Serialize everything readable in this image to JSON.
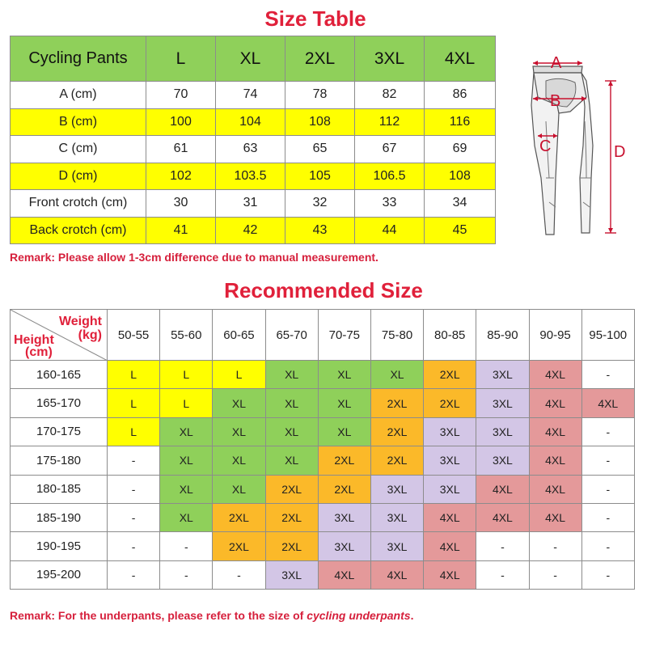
{
  "size_table": {
    "title": "Size Table",
    "header": [
      "Cycling Pants",
      "L",
      "XL",
      "2XL",
      "3XL",
      "4XL"
    ],
    "rows": [
      {
        "label": "A (cm)",
        "values": [
          "70",
          "74",
          "78",
          "82",
          "86"
        ],
        "color": "#ffffff"
      },
      {
        "label": "B (cm)",
        "values": [
          "100",
          "104",
          "108",
          "112",
          "116"
        ],
        "color": "#ffff00"
      },
      {
        "label": "C (cm)",
        "values": [
          "61",
          "63",
          "65",
          "67",
          "69"
        ],
        "color": "#ffffff"
      },
      {
        "label": "D (cm)",
        "values": [
          "102",
          "103.5",
          "105",
          "106.5",
          "108"
        ],
        "color": "#ffff00"
      },
      {
        "label": "Front crotch (cm)",
        "values": [
          "30",
          "31",
          "32",
          "33",
          "34"
        ],
        "color": "#ffffff"
      },
      {
        "label": "Back crotch (cm)",
        "values": [
          "41",
          "42",
          "43",
          "44",
          "45"
        ],
        "color": "#ffff00"
      }
    ],
    "remark": "Remark: Please allow 1-3cm difference due to manual measurement."
  },
  "diagram": {
    "labels": {
      "a": "A",
      "b": "B",
      "c": "C",
      "d": "D"
    }
  },
  "recommended": {
    "title": "Recommended Size",
    "corner": {
      "weight": "Weight",
      "weight_unit": "(kg)",
      "height": "Height",
      "height_unit": "(cm)"
    },
    "weights": [
      "50-55",
      "55-60",
      "60-65",
      "65-70",
      "70-75",
      "75-80",
      "80-85",
      "85-90",
      "90-95",
      "95-100"
    ],
    "rows": [
      {
        "height": "160-165",
        "sizes": [
          "L",
          "L",
          "L",
          "XL",
          "XL",
          "XL",
          "2XL",
          "3XL",
          "4XL",
          "-"
        ]
      },
      {
        "height": "165-170",
        "sizes": [
          "L",
          "L",
          "XL",
          "XL",
          "XL",
          "2XL",
          "2XL",
          "3XL",
          "4XL",
          "4XL"
        ]
      },
      {
        "height": "170-175",
        "sizes": [
          "L",
          "XL",
          "XL",
          "XL",
          "XL",
          "2XL",
          "3XL",
          "3XL",
          "4XL",
          "-"
        ]
      },
      {
        "height": "175-180",
        "sizes": [
          "-",
          "XL",
          "XL",
          "XL",
          "2XL",
          "2XL",
          "3XL",
          "3XL",
          "4XL",
          "-"
        ]
      },
      {
        "height": "180-185",
        "sizes": [
          "-",
          "XL",
          "XL",
          "2XL",
          "2XL",
          "3XL",
          "3XL",
          "4XL",
          "4XL",
          "-"
        ]
      },
      {
        "height": "185-190",
        "sizes": [
          "-",
          "XL",
          "2XL",
          "2XL",
          "3XL",
          "3XL",
          "4XL",
          "4XL",
          "4XL",
          "-"
        ]
      },
      {
        "height": "190-195",
        "sizes": [
          "-",
          "-",
          "2XL",
          "2XL",
          "3XL",
          "3XL",
          "4XL",
          "-",
          "-",
          "-"
        ]
      },
      {
        "height": "195-200",
        "sizes": [
          "-",
          "-",
          "-",
          "3XL",
          "4XL",
          "4XL",
          "4XL",
          "-",
          "-",
          "-"
        ]
      }
    ],
    "size_colors": {
      "L": "#ffff00",
      "XL": "#8fd05a",
      "2XL": "#fbb929",
      "3XL": "#d3c6e6",
      "4XL": "#e4999a",
      "-": "#ffffff"
    },
    "remark_prefix": "Remark: For the underpants, please refer to the size of ",
    "remark_italic": "cycling underpants",
    "remark_suffix": "."
  },
  "colors": {
    "title_red": "#e0203a",
    "remark_red": "#d6203c",
    "header_green": "#8fd05a",
    "highlight_yellow": "#ffff00",
    "label_red": "#e0203a"
  }
}
